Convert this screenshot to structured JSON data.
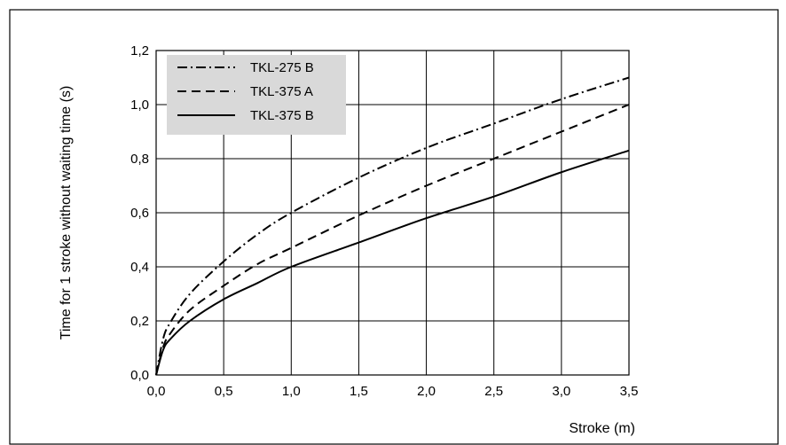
{
  "chart_data": {
    "type": "line",
    "xlabel": "Stroke (m)",
    "ylabel": "Time for 1 stroke without waiting time (s)",
    "xlim": [
      0,
      3.5
    ],
    "ylim": [
      0,
      1.2
    ],
    "xticks": [
      "0,0",
      "0,5",
      "1,0",
      "1,5",
      "2,0",
      "2,5",
      "3,0",
      "3,5"
    ],
    "yticks": [
      "0,0",
      "0,2",
      "0,4",
      "0,6",
      "0,8",
      "1,0",
      "1,2"
    ],
    "grid": true,
    "legend_position": "top-left",
    "series": [
      {
        "name": "TKL-275 B",
        "dash": "dash-dot",
        "x": [
          0,
          0.05,
          0.1,
          0.25,
          0.5,
          0.75,
          1.0,
          1.5,
          2.0,
          2.5,
          3.0,
          3.5
        ],
        "y": [
          0,
          0.13,
          0.19,
          0.3,
          0.42,
          0.52,
          0.6,
          0.73,
          0.84,
          0.93,
          1.02,
          1.1
        ]
      },
      {
        "name": "TKL-375 A",
        "dash": "dashed",
        "x": [
          0,
          0.05,
          0.1,
          0.25,
          0.5,
          0.75,
          1.0,
          1.5,
          2.0,
          2.5,
          3.0,
          3.5
        ],
        "y": [
          0,
          0.1,
          0.15,
          0.24,
          0.33,
          0.41,
          0.47,
          0.59,
          0.7,
          0.8,
          0.9,
          1.0
        ]
      },
      {
        "name": "TKL-375 B",
        "dash": "solid",
        "x": [
          0,
          0.05,
          0.1,
          0.25,
          0.5,
          0.75,
          1.0,
          1.5,
          2.0,
          2.5,
          3.0,
          3.5
        ],
        "y": [
          0,
          0.09,
          0.13,
          0.2,
          0.28,
          0.34,
          0.4,
          0.49,
          0.58,
          0.66,
          0.75,
          0.83
        ]
      }
    ]
  }
}
